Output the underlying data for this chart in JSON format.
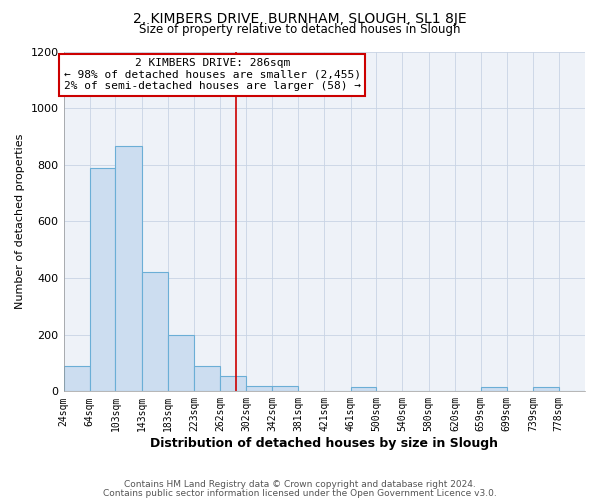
{
  "title": "2, KIMBERS DRIVE, BURNHAM, SLOUGH, SL1 8JE",
  "subtitle": "Size of property relative to detached houses in Slough",
  "xlabel": "Distribution of detached houses by size in Slough",
  "ylabel": "Number of detached properties",
  "footer_lines": [
    "Contains HM Land Registry data © Crown copyright and database right 2024.",
    "Contains public sector information licensed under the Open Government Licence v3.0."
  ],
  "annotation_title": "2 KIMBERS DRIVE: 286sqm",
  "annotation_line1": "← 98% of detached houses are smaller (2,455)",
  "annotation_line2": "2% of semi-detached houses are larger (58) →",
  "property_size": 286,
  "vline_x": 286,
  "bar_color": "#ccddf0",
  "bar_edge_color": "#6baed6",
  "vline_color": "#cc0000",
  "annotation_box_edge": "#cc0000",
  "grid_color": "#c8d4e4",
  "bg_color": "#ffffff",
  "plot_bg_color": "#eef2f8",
  "bins": [
    24,
    64,
    103,
    143,
    183,
    223,
    262,
    302,
    342,
    381,
    421,
    461,
    500,
    540,
    580,
    620,
    659,
    699,
    739,
    778,
    818
  ],
  "counts": [
    90,
    790,
    865,
    420,
    200,
    90,
    55,
    20,
    20,
    0,
    0,
    15,
    0,
    0,
    0,
    0,
    15,
    0,
    15,
    0
  ],
  "ylim": [
    0,
    1200
  ],
  "yticks": [
    0,
    200,
    400,
    600,
    800,
    1000,
    1200
  ]
}
